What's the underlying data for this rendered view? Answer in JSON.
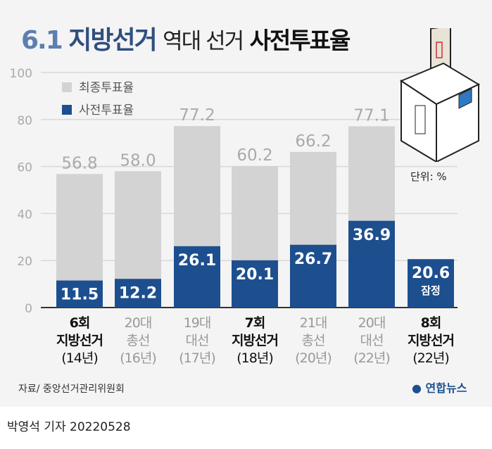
{
  "title": {
    "part1": "6.1",
    "part2": "지방선거",
    "part3": "역대 선거",
    "part4": "사전투표율"
  },
  "unit": "단위: %",
  "source": "자료/ 중앙선거관리위원회",
  "logo": "연합뉴스",
  "byline": "박영석 기자  20220528",
  "colors": {
    "total": "#d3d3d3",
    "early": "#1d4f8f",
    "panel": "#f4f4f4"
  },
  "chart_data": {
    "type": "bar",
    "title": "6.1 지방선거 역대 선거 사전투표율",
    "ylim": [
      0,
      100
    ],
    "yticks": [
      "0",
      "20",
      "40",
      "60",
      "80",
      "100"
    ],
    "legend": [
      "최종투표율",
      "사전투표율"
    ],
    "legend_position": "top-left",
    "categories": [
      {
        "l1": "6회",
        "l2": "지방선거",
        "l3": "(14년)",
        "local": true
      },
      {
        "l1": "20대",
        "l2": "총선",
        "l3": "(16년)",
        "local": false
      },
      {
        "l1": "19대",
        "l2": "대선",
        "l3": "(17년)",
        "local": false
      },
      {
        "l1": "7회",
        "l2": "지방선거",
        "l3": "(18년)",
        "local": true
      },
      {
        "l1": "21대",
        "l2": "총선",
        "l3": "(20년)",
        "local": false
      },
      {
        "l1": "20대",
        "l2": "대선",
        "l3": "(22년)",
        "local": false
      },
      {
        "l1": "8회",
        "l2": "지방선거",
        "l3": "(22년)",
        "local": true
      }
    ],
    "series": [
      {
        "name": "최종투표율",
        "values": [
          56.8,
          58.0,
          77.2,
          60.2,
          66.2,
          77.1,
          null
        ],
        "labels": [
          "56.8",
          "58.0",
          "77.2",
          "60.2",
          "66.2",
          "77.1",
          ""
        ]
      },
      {
        "name": "사전투표율",
        "values": [
          11.5,
          12.2,
          26.1,
          20.1,
          26.7,
          36.9,
          20.6
        ],
        "labels": [
          "11.5",
          "12.2",
          "26.1",
          "20.1",
          "26.7",
          "36.9",
          "20.6"
        ]
      }
    ],
    "annotation": "잠정"
  }
}
